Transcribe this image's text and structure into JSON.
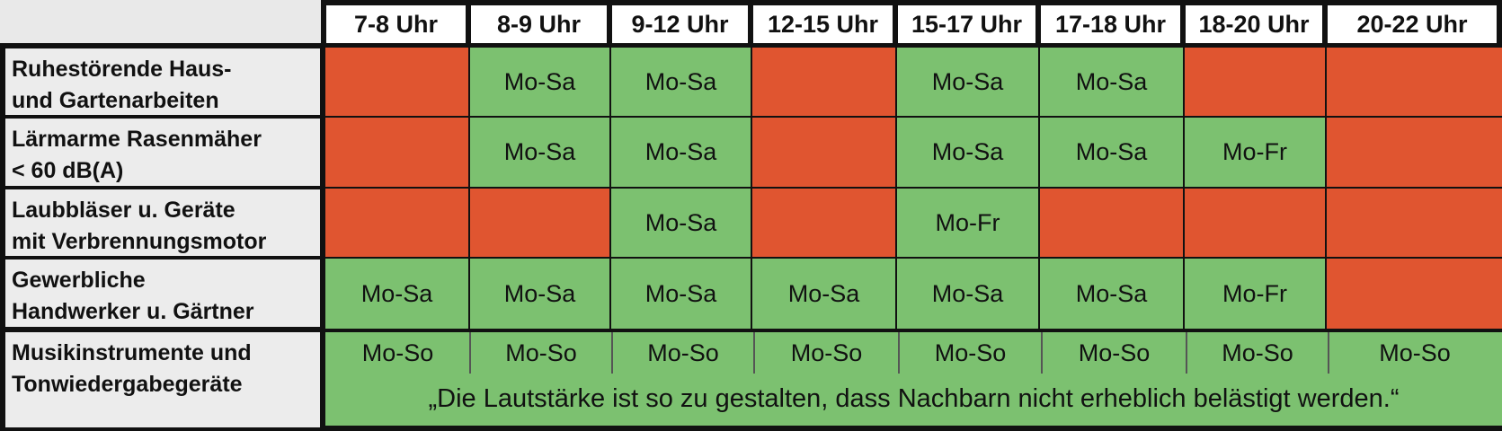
{
  "columns": [
    "7-8 Uhr",
    "8-9 Uhr",
    "9-12 Uhr",
    "12-15 Uhr",
    "15-17 Uhr",
    "17-18 Uhr",
    "18-20 Uhr",
    "20-22 Uhr"
  ],
  "rows": [
    {
      "label_line1": "Ruhestörende Haus-",
      "label_line2": "und Gartenarbeiten",
      "cells": [
        "",
        "Mo-Sa",
        "Mo-Sa",
        "",
        "Mo-Sa",
        "Mo-Sa",
        "",
        ""
      ]
    },
    {
      "label_line1": "Lärmarme Rasenmäher",
      "label_line2": "< 60 dB(A)",
      "cells": [
        "",
        "Mo-Sa",
        "Mo-Sa",
        "",
        "Mo-Sa",
        "Mo-Sa",
        "Mo-Fr",
        ""
      ]
    },
    {
      "label_line1": "Laubbläser u. Geräte",
      "label_line2": "mit Verbrennungsmotor",
      "cells": [
        "",
        "",
        "Mo-Sa",
        "",
        "Mo-Fr",
        "",
        "",
        ""
      ]
    },
    {
      "label_line1": "Gewerbliche",
      "label_line2": "Handwerker u. Gärtner",
      "cells": [
        "Mo-Sa",
        "Mo-Sa",
        "Mo-Sa",
        "Mo-Sa",
        "Mo-Sa",
        "Mo-Sa",
        "Mo-Fr",
        ""
      ]
    },
    {
      "label_line1": "Musikinstrumente und",
      "label_line2": "Tonwiedergabegeräte",
      "cells": [
        "Mo-So",
        "Mo-So",
        "Mo-So",
        "Mo-So",
        "Mo-So",
        "Mo-So",
        "Mo-So",
        "Mo-So"
      ],
      "note": "„Die Lautstärke ist so zu gestalten, dass Nachbarn nicht erheblich belästigt werden.“"
    }
  ],
  "colors": {
    "allowed": "#7cc170",
    "forbidden": "#e05530",
    "border": "#111111"
  }
}
